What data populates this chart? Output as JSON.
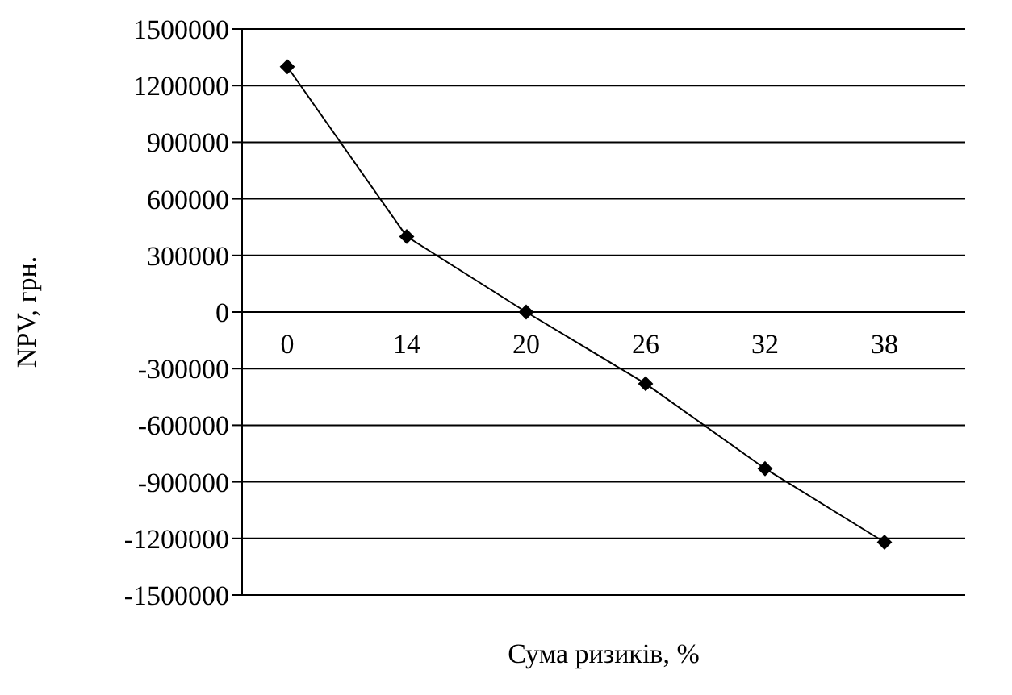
{
  "chart_data": {
    "type": "line",
    "xlabel": "Сума ризиків, %",
    "ylabel": "NPV, грн.",
    "categories": [
      "0",
      "14",
      "20",
      "26",
      "32",
      "38"
    ],
    "series": [
      {
        "color": "#000000",
        "values": [
          1300000,
          400000,
          0,
          -380000,
          -830000,
          -1220000
        ]
      }
    ],
    "ylim": [
      -1500000,
      1500000
    ],
    "yticks": [
      -1500000,
      -1200000,
      -900000,
      -600000,
      -300000,
      0,
      300000,
      600000,
      900000,
      1200000,
      1500000
    ],
    "grid": "y",
    "marker": "diamond",
    "line_style": "solid",
    "legend": false
  }
}
